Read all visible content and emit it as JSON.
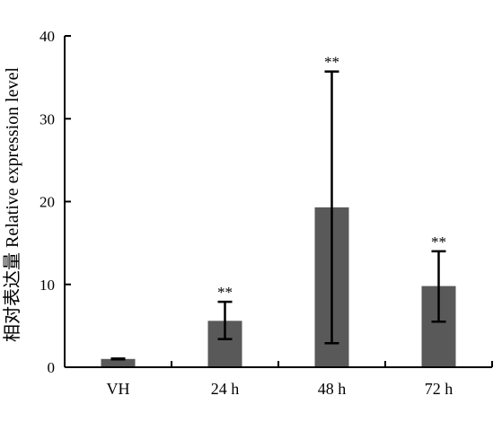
{
  "chart_data": {
    "type": "bar",
    "categories": [
      "VH",
      "24 h",
      "48 h",
      "72 h"
    ],
    "values": [
      1.0,
      5.6,
      19.3,
      9.8
    ],
    "error_upper": [
      1.05,
      7.9,
      35.7,
      14.0
    ],
    "error_lower": [
      0.95,
      3.4,
      2.9,
      5.5
    ],
    "annotations": [
      "",
      "**",
      "**",
      "**"
    ],
    "ylabel": "相对表达量 Relative expression level",
    "xlabel": "",
    "ylim": [
      0,
      40
    ],
    "yticks": [
      0,
      10,
      20,
      30,
      40
    ],
    "grid": false,
    "bar_color": "#595959",
    "legend": "none"
  }
}
